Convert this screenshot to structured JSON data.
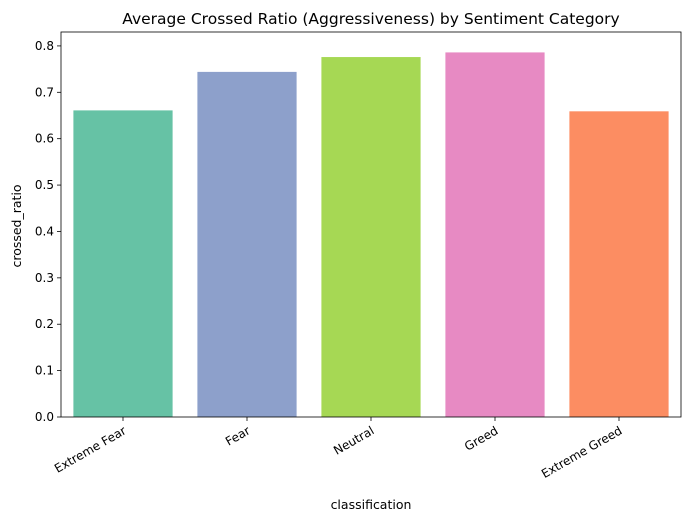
{
  "chart_data": {
    "type": "bar",
    "title": "Average Crossed Ratio (Aggressiveness) by Sentiment Category",
    "xlabel": "classification",
    "ylabel": "crossed_ratio",
    "categories": [
      "Extreme Fear",
      "Fear",
      "Neutral",
      "Greed",
      "Extreme Greed"
    ],
    "values": [
      0.661,
      0.744,
      0.776,
      0.786,
      0.659
    ],
    "colors": [
      "#66c2a5",
      "#8da0cb",
      "#a6d854",
      "#e78ac3",
      "#fc8d62"
    ],
    "ylim": [
      0,
      0.83
    ],
    "yticks": [
      "0.0",
      "0.1",
      "0.2",
      "0.3",
      "0.4",
      "0.5",
      "0.6",
      "0.7",
      "0.8"
    ],
    "x_tick_rotation": 30,
    "grid": false,
    "legend": "none"
  }
}
